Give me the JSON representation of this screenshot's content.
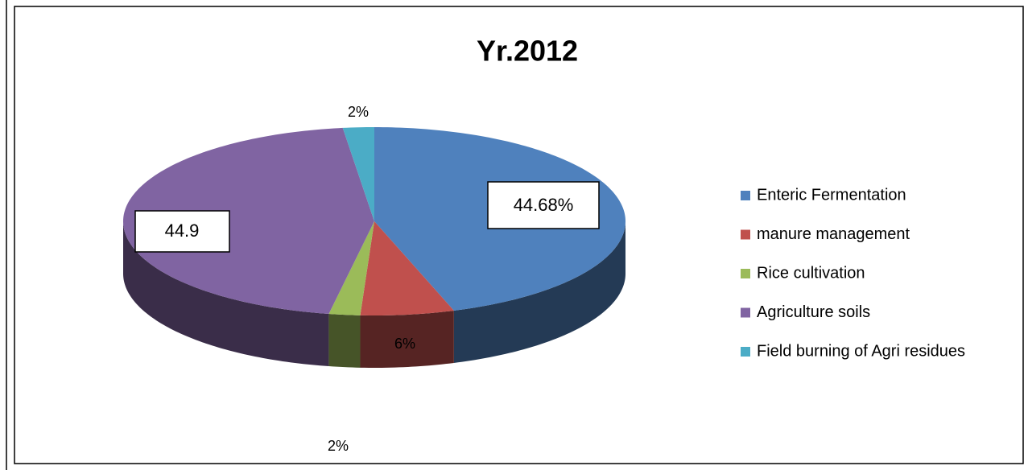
{
  "chart_data": {
    "type": "pie",
    "title": "Yr.2012",
    "categories": [
      "Enteric Fermentation",
      "manure management",
      "Rice cultivation",
      "Agriculture soils",
      "Field burning of Agri residues"
    ],
    "values": [
      44.68,
      6,
      2,
      44.9,
      2
    ],
    "value_labels": [
      "44.68%",
      "6%",
      "2%",
      "44.9",
      "2%"
    ],
    "colors": [
      "#4f81bd",
      "#c0504d",
      "#9bbb59",
      "#8064a2",
      "#4bacc6"
    ],
    "legend": "right"
  }
}
